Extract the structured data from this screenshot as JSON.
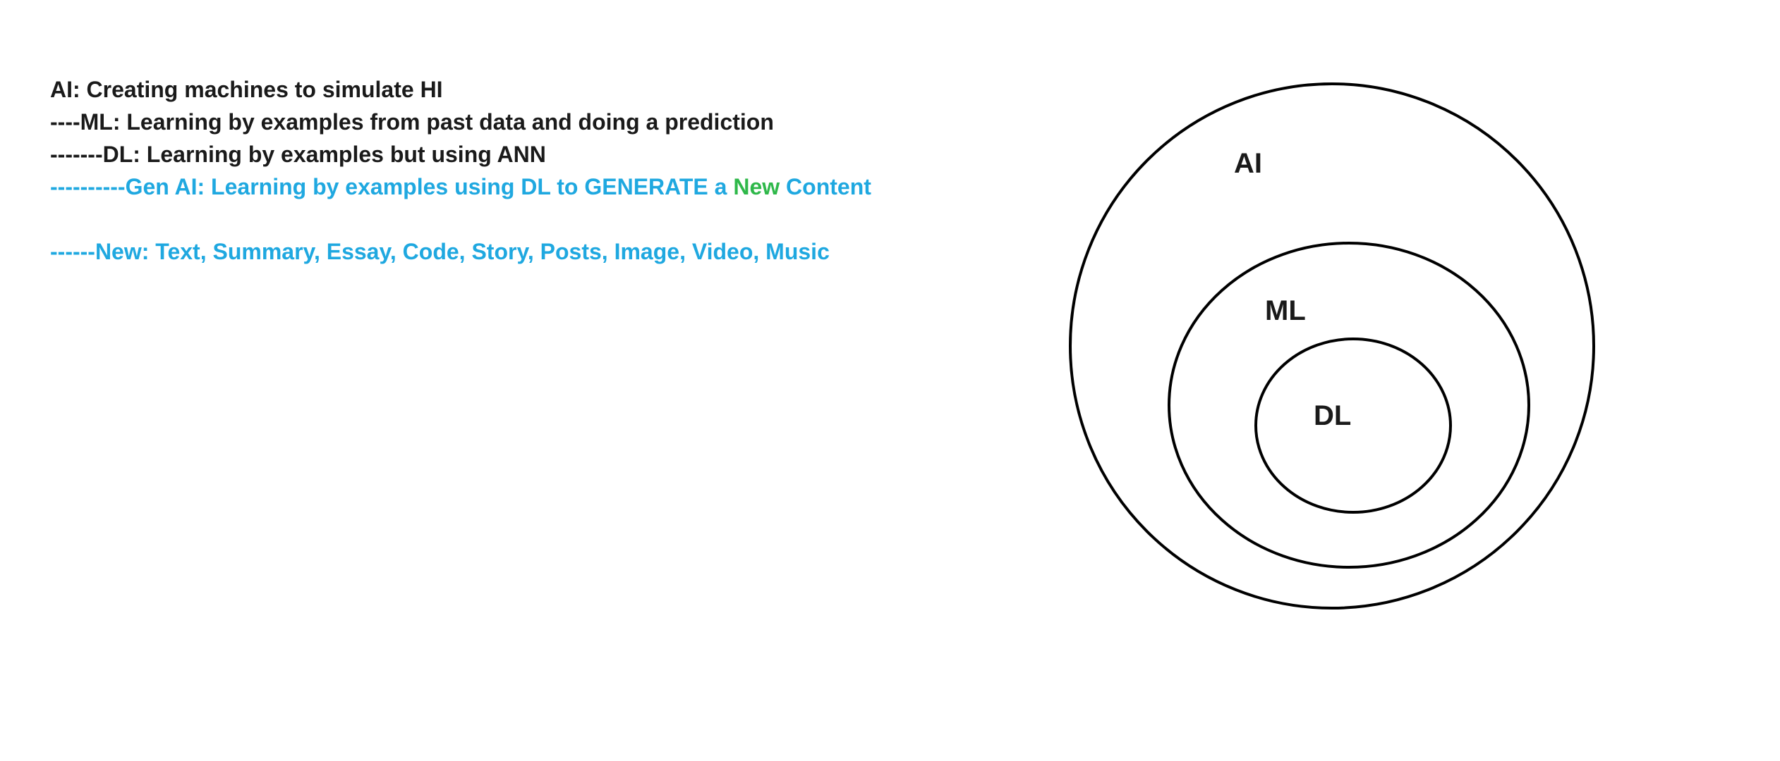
{
  "notes": {
    "line1": "AI: Creating machines to simulate HI",
    "line2": "----ML: Learning by examples from past data and doing a prediction",
    "line3": "-------DL: Learning by examples but using ANN",
    "line4_prefix": "----------Gen AI: Learning by examples using DL to GENERATE a ",
    "line4_highlight": "New",
    "line4_suffix": " Content",
    "line5": "------New: Text, Summary, Essay, Code, Story, Posts, Image, Video, Music"
  },
  "diagram": {
    "outer_label": "AI",
    "middle_label": "ML",
    "inner_label": "DL"
  },
  "colors": {
    "text": "#1a1a1a",
    "blue_text": "#1fa8e0",
    "green_text": "#2fb84a",
    "circle_stroke": "#000000"
  }
}
